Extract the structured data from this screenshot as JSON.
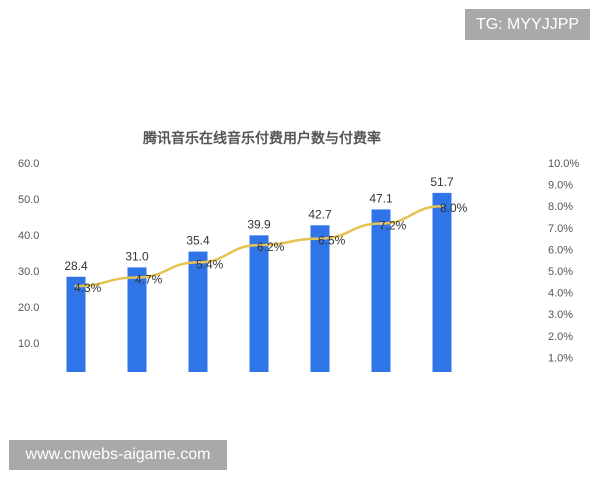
{
  "watermarks": {
    "top_right": "TG: MYYJJPP",
    "bottom_left": "www.cnwebs-aigame.com"
  },
  "chart_data": {
    "type": "bar+line",
    "title": "腾讯音乐在线音乐付费用户数与付费率",
    "categories": [
      "",
      "",
      "",
      "",
      "",
      "",
      ""
    ],
    "series": [
      {
        "type": "bar",
        "axis": "left",
        "values": [
          28.4,
          31.0,
          35.4,
          39.9,
          42.7,
          47.1,
          51.7
        ],
        "labels": [
          "28.4",
          "31.0",
          "35.4",
          "39.9",
          "42.7",
          "47.1",
          "51.7"
        ],
        "color": "#2f75e8"
      },
      {
        "type": "line",
        "axis": "right",
        "values": [
          4.3,
          4.7,
          5.4,
          6.2,
          6.5,
          7.2,
          8.0
        ],
        "labels": [
          "4.3%",
          "4.7%",
          "5.4%",
          "6.2%",
          "6.5%",
          "7.2%",
          "8.0%"
        ],
        "color": "#e6c250"
      }
    ],
    "left_axis": {
      "ylim": [
        0,
        60
      ],
      "ticks": [
        "10.0",
        "20.0",
        "30.0",
        "40.0",
        "50.0",
        "60.0"
      ]
    },
    "right_axis": {
      "ylim": [
        0,
        10
      ],
      "ticks": [
        "1.0%",
        "2.0%",
        "3.0%",
        "4.0%",
        "5.0%",
        "6.0%",
        "7.0%",
        "8.0%",
        "9.0%",
        "10.0%"
      ]
    },
    "grid": false,
    "legend": "none"
  }
}
